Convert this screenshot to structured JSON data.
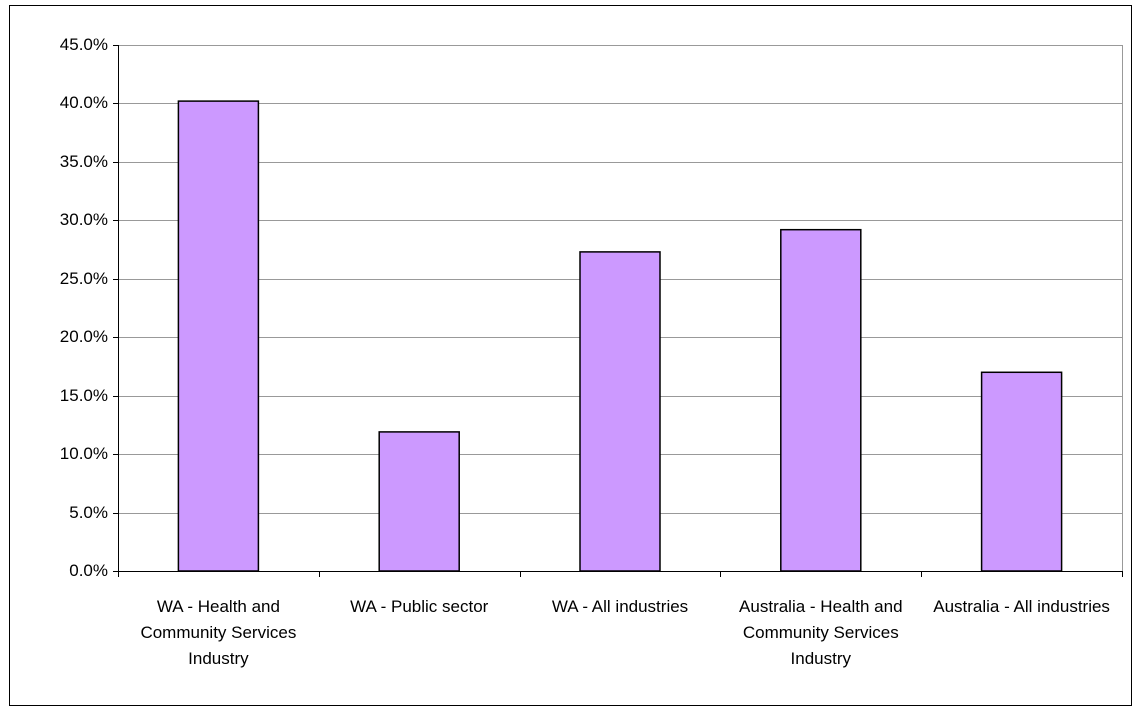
{
  "chart_data": {
    "type": "bar",
    "categories": [
      "WA - Health and Community Services Industry",
      "WA - Public sector",
      "WA - All industries",
      "Australia - Health and Community Services Industry",
      "Australia - All industries"
    ],
    "values": [
      40.2,
      11.9,
      27.3,
      29.2,
      17.0
    ],
    "color": "#cc99ff",
    "ylim": [
      0,
      45
    ],
    "yticks": [
      {
        "value": 0,
        "label": "0.0%"
      },
      {
        "value": 5,
        "label": "5.0%"
      },
      {
        "value": 10,
        "label": "10.0%"
      },
      {
        "value": 15,
        "label": "15.0%"
      },
      {
        "value": 20,
        "label": "20.0%"
      },
      {
        "value": 25,
        "label": "25.0%"
      },
      {
        "value": 30,
        "label": "30.0%"
      },
      {
        "value": 35,
        "label": "35.0%"
      },
      {
        "value": 40,
        "label": "40.0%"
      },
      {
        "value": 45,
        "label": "45.0%"
      }
    ],
    "grid": true
  }
}
